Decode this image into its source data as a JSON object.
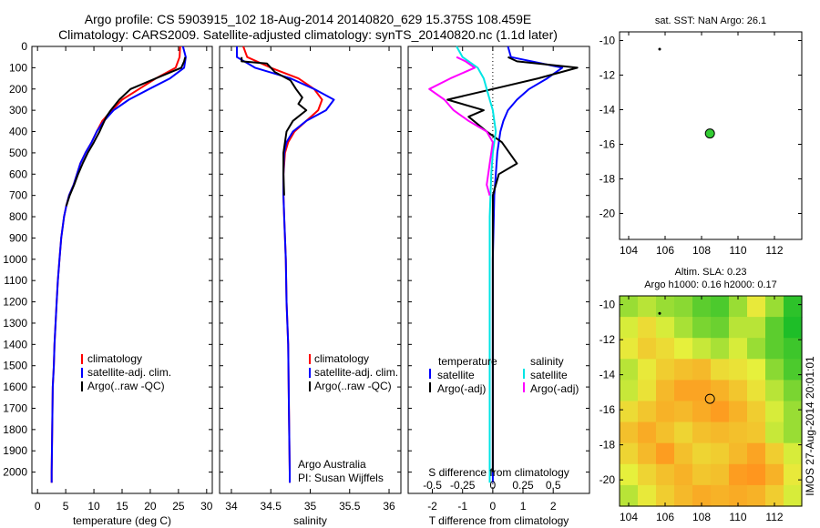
{
  "header": {
    "line1": "Argo profile: CS 5903915_102 18-Aug-2014 20140820_629 15.375S 108.459E",
    "line2": "Climatology: CARS2009. Satellite-adjusted climatology: synTS_20140820.nc (1.1d later)"
  },
  "side_label": "IMOS 27-Aug-2014 20:01:01",
  "colors": {
    "climatology": "#ff0000",
    "satellite": "#0000ff",
    "argo": "#000000",
    "sal_satellite": "#00e5e5",
    "sal_argo": "#ff00ff",
    "marker": "#33cc33"
  },
  "chart_data": [
    {
      "id": "temperature",
      "type": "line",
      "xlabel": "temperature (deg C)",
      "ylabel": "",
      "xlim": [
        -1,
        31
      ],
      "ylim": [
        2100,
        0
      ],
      "xticks": [
        0,
        5,
        10,
        15,
        20,
        25,
        30
      ],
      "yticks": [
        0,
        100,
        200,
        300,
        400,
        500,
        600,
        700,
        800,
        900,
        1000,
        1100,
        1200,
        1300,
        1400,
        1500,
        1600,
        1700,
        1800,
        1900,
        2000
      ],
      "legend": {
        "position": "lower-middle",
        "entries": [
          "climatology",
          "satellite-adj. clim.",
          "Argo(..raw -QC)"
        ]
      },
      "series": [
        {
          "name": "climatology",
          "color": "#ff0000",
          "x": [
            25.3,
            25.2,
            24.5,
            21,
            18,
            15,
            13.2,
            11.5,
            10.5,
            9.6,
            8.5,
            7.6,
            7,
            6.4,
            5.6,
            5.1,
            4.7,
            4.2,
            3.9,
            3.6,
            3.4,
            3.2,
            3,
            2.9,
            2.7,
            2.6,
            2.5,
            2.5
          ],
          "y": [
            0,
            50,
            100,
            150,
            200,
            250,
            300,
            350,
            400,
            450,
            500,
            550,
            600,
            650,
            700,
            750,
            800,
            900,
            1000,
            1100,
            1200,
            1300,
            1400,
            1500,
            1600,
            1800,
            2000,
            2050
          ]
        },
        {
          "name": "satellite-adj. clim.",
          "color": "#0000ff",
          "x": [
            25.8,
            26.3,
            26,
            23.5,
            19.8,
            16.2,
            13.5,
            11.8,
            10.5,
            9.6,
            8.5,
            7.6,
            7,
            6.4,
            5.6,
            5.1,
            4.7,
            4.2,
            3.9,
            3.6,
            3.4,
            3.2,
            3,
            2.9,
            2.7,
            2.6,
            2.5,
            2.5
          ],
          "y": [
            0,
            50,
            100,
            150,
            200,
            250,
            300,
            350,
            400,
            450,
            500,
            550,
            600,
            650,
            700,
            750,
            800,
            900,
            1000,
            1100,
            1200,
            1300,
            1400,
            1500,
            1600,
            1800,
            2000,
            2050
          ]
        },
        {
          "name": "Argo(..raw -QC)",
          "color": "#000000",
          "x": [
            26.2,
            26,
            25.5,
            21,
            16.5,
            14.5,
            13,
            12.2,
            11,
            10,
            8.9,
            8,
            7.2,
            6.5,
            5.7,
            5.1
          ],
          "y": [
            50,
            70,
            100,
            150,
            200,
            250,
            300,
            330,
            400,
            450,
            500,
            550,
            600,
            650,
            700,
            750
          ]
        }
      ]
    },
    {
      "id": "salinity",
      "type": "line",
      "xlabel": "salinity",
      "ylabel": "",
      "xlim": [
        33.85,
        36.15
      ],
      "ylim": [
        2100,
        0
      ],
      "xticks": [
        34,
        34.5,
        35,
        35.5,
        36
      ],
      "legend": {
        "position": "lower-right",
        "entries": [
          "climatology",
          "satellite-adj. clim.",
          "Argo(..raw -QC)"
        ]
      },
      "annotation": [
        "Argo Australia",
        "PI: Susan Wijffels"
      ],
      "series": [
        {
          "name": "climatology",
          "color": "#ff0000",
          "x": [
            34.15,
            34.2,
            34.5,
            34.85,
            35.05,
            35.15,
            35.1,
            34.95,
            34.8,
            34.72,
            34.68,
            34.66,
            34.66,
            34.67,
            34.69,
            34.7,
            34.72,
            34.73,
            34.74,
            34.74
          ],
          "y": [
            0,
            50,
            100,
            150,
            200,
            250,
            300,
            350,
            400,
            450,
            500,
            600,
            700,
            800,
            1000,
            1200,
            1400,
            1700,
            2000,
            2050
          ]
        },
        {
          "name": "satellite-adj. clim.",
          "color": "#0000ff",
          "x": [
            34.07,
            34.07,
            34.3,
            34.75,
            35.05,
            35.3,
            35.2,
            34.95,
            34.78,
            34.7,
            34.67,
            34.66,
            34.66,
            34.67,
            34.69,
            34.7,
            34.72,
            34.73,
            34.74,
            34.74
          ],
          "y": [
            0,
            50,
            100,
            150,
            200,
            250,
            300,
            350,
            400,
            450,
            500,
            600,
            700,
            800,
            1000,
            1200,
            1400,
            1700,
            2000,
            2050
          ]
        },
        {
          "name": "Argo(..raw -QC)",
          "color": "#000000",
          "x": [
            34.13,
            34.13,
            34.45,
            34.55,
            34.75,
            34.82,
            34.9,
            34.85,
            34.95,
            34.78,
            34.7,
            34.68,
            34.66,
            34.66,
            34.67
          ],
          "y": [
            50,
            70,
            80,
            120,
            160,
            200,
            240,
            270,
            300,
            350,
            400,
            450,
            500,
            600,
            700
          ]
        }
      ]
    },
    {
      "id": "difference",
      "type": "line",
      "xlabel": "T difference from climatology",
      "xlabel_top": "S difference from climatology",
      "ylabel": "",
      "xlim": [
        -2.8,
        3.2
      ],
      "ylim": [
        2100,
        0
      ],
      "xticks": [
        -2,
        -1,
        0,
        1,
        2
      ],
      "x2ticks": [
        "-0.5",
        "-0.25",
        "0",
        "0.25",
        "0.5"
      ],
      "x2tick_positions": [
        -2,
        -1,
        0,
        1,
        2
      ],
      "zero_line": true,
      "legend": {
        "position": "lower-middle",
        "entries": [
          "temperature",
          "satellite",
          "Argo(-adj)",
          "salinity",
          "satellite",
          "Argo(-adj)"
        ]
      },
      "series": [
        {
          "name": "satellite",
          "group": "temperature",
          "color": "#0000ff",
          "x": [
            0.5,
            0.6,
            2.3,
            1.8,
            1.2,
            0.8,
            0.5,
            0.35,
            0.25,
            0.2,
            0.15,
            0.1,
            0.05,
            0,
            0
          ],
          "y": [
            0,
            50,
            100,
            150,
            200,
            250,
            300,
            350,
            400,
            450,
            500,
            600,
            700,
            1000,
            2050
          ]
        },
        {
          "name": "Argo(-adj)",
          "group": "temperature",
          "color": "#000000",
          "x": [
            0.5,
            0.8,
            2.8,
            1.5,
            0,
            -1.5,
            -0.3,
            -0.8,
            -0.2,
            0.3,
            0.8,
            0.2,
            0,
            0,
            0
          ],
          "y": [
            50,
            70,
            100,
            150,
            200,
            250,
            300,
            330,
            400,
            450,
            550,
            600,
            700,
            1000,
            2000
          ]
        },
        {
          "name": "satellite",
          "group": "salinity",
          "color": "#00e5e5",
          "x": [
            -1.2,
            -1,
            -0.5,
            -0.3,
            -0.2,
            -0.1,
            0,
            0.05,
            0.1,
            0.05,
            0,
            -0.05,
            -0.1,
            -0.1,
            -0.1
          ],
          "y": [
            0,
            50,
            100,
            150,
            200,
            250,
            300,
            350,
            400,
            450,
            500,
            600,
            800,
            1400,
            2050
          ]
        },
        {
          "name": "Argo(-adj)",
          "group": "salinity",
          "color": "#ff00ff",
          "x": [
            -1.2,
            -0.9,
            -0.6,
            -1.4,
            -2.1,
            -1.6,
            -1.3,
            -0.8,
            -0.2,
            0,
            -0.1,
            -0.2,
            -0.1
          ],
          "y": [
            50,
            70,
            100,
            150,
            200,
            250,
            300,
            350,
            400,
            450,
            550,
            650,
            700
          ]
        }
      ]
    },
    {
      "id": "map_sst",
      "type": "scatter",
      "title": "sat. SST: NaN Argo: 26.1",
      "xlabel": "",
      "ylabel": "",
      "xlim": [
        103.5,
        113.5
      ],
      "ylim": [
        -21.5,
        -9.5
      ],
      "xticks": [
        104,
        106,
        108,
        110,
        112
      ],
      "yticks": [
        -10,
        -12,
        -14,
        -16,
        -18,
        -20
      ],
      "points": [
        {
          "label": "profile",
          "x": 108.459,
          "y": -15.375,
          "color": "#33cc33"
        },
        {
          "label": "track",
          "x": 105.7,
          "y": -10.5,
          "color": "#000000"
        }
      ]
    },
    {
      "id": "map_sla",
      "type": "heatmap",
      "title": "Altim. SLA: 0.23",
      "subtitle": "Argo h1000: 0.16 h2000: 0.17",
      "xlabel": "",
      "ylabel": "",
      "xlim": [
        103.5,
        113.5
      ],
      "ylim": [
        -21.5,
        -9.5
      ],
      "xticks": [
        104,
        106,
        108,
        110,
        112
      ],
      "yticks": [
        -10,
        -12,
        -14,
        -16,
        -18,
        -20
      ],
      "values": [
        [
          0.1,
          0.12,
          0.1,
          0.09,
          0.06,
          0.05,
          0.1,
          0.16,
          0.1,
          0.03
        ],
        [
          0.14,
          0.18,
          0.14,
          0.11,
          0.08,
          0.07,
          0.12,
          0.12,
          0.06,
          0.02
        ],
        [
          0.16,
          0.2,
          0.18,
          0.15,
          0.13,
          0.11,
          0.14,
          0.1,
          0.06,
          0.04
        ],
        [
          0.12,
          0.16,
          0.2,
          0.22,
          0.23,
          0.18,
          0.17,
          0.15,
          0.09,
          0.05
        ],
        [
          0.13,
          0.17,
          0.23,
          0.26,
          0.26,
          0.24,
          0.21,
          0.17,
          0.12,
          0.08
        ],
        [
          0.18,
          0.21,
          0.24,
          0.23,
          0.25,
          0.27,
          0.24,
          0.2,
          0.14,
          0.1
        ],
        [
          0.22,
          0.25,
          0.22,
          0.19,
          0.22,
          0.23,
          0.22,
          0.21,
          0.13,
          0.1
        ],
        [
          0.19,
          0.23,
          0.27,
          0.22,
          0.19,
          0.2,
          0.23,
          0.26,
          0.2,
          0.14
        ],
        [
          0.15,
          0.19,
          0.22,
          0.24,
          0.21,
          0.22,
          0.27,
          0.28,
          0.24,
          0.16
        ],
        [
          0.12,
          0.16,
          0.2,
          0.23,
          0.25,
          0.24,
          0.25,
          0.24,
          0.2,
          0.14
        ]
      ],
      "points": [
        {
          "label": "profile",
          "x": 108.459,
          "y": -15.375
        },
        {
          "label": "track",
          "x": 105.7,
          "y": -10.5
        }
      ]
    }
  ]
}
